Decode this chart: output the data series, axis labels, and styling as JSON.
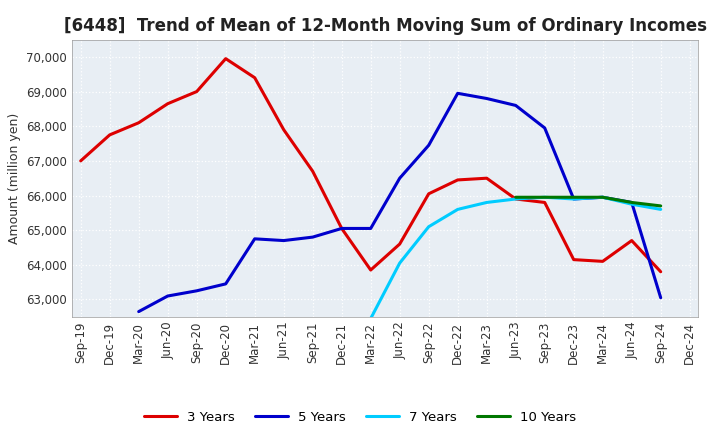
{
  "title": "[6448]  Trend of Mean of 12-Month Moving Sum of Ordinary Incomes",
  "ylabel": "Amount (million yen)",
  "ylim": [
    62500,
    70500
  ],
  "yticks": [
    63000,
    64000,
    65000,
    66000,
    67000,
    68000,
    69000,
    70000
  ],
  "x_labels": [
    "Sep-19",
    "Dec-19",
    "Mar-20",
    "Jun-20",
    "Sep-20",
    "Dec-20",
    "Mar-21",
    "Jun-21",
    "Sep-21",
    "Dec-21",
    "Mar-22",
    "Jun-22",
    "Sep-22",
    "Dec-22",
    "Mar-23",
    "Jun-23",
    "Sep-23",
    "Dec-23",
    "Mar-24",
    "Jun-24",
    "Sep-24",
    "Dec-24"
  ],
  "series": {
    "3 Years": {
      "color": "#dd0000",
      "data_x": [
        "Sep-19",
        "Dec-19",
        "Mar-20",
        "Jun-20",
        "Sep-20",
        "Dec-20",
        "Mar-21",
        "Jun-21",
        "Sep-21",
        "Dec-21",
        "Mar-22",
        "Jun-22",
        "Sep-22",
        "Dec-22",
        "Mar-23",
        "Jun-23",
        "Sep-23",
        "Dec-23",
        "Mar-24",
        "Jun-24",
        "Sep-24"
      ],
      "data_y": [
        67000,
        67750,
        68100,
        68650,
        69000,
        69950,
        69400,
        67900,
        66700,
        65050,
        63850,
        64600,
        66050,
        66450,
        66500,
        65900,
        65800,
        64150,
        64100,
        64700,
        63800
      ]
    },
    "5 Years": {
      "color": "#0000cc",
      "data_x": [
        "Mar-20",
        "Jun-20",
        "Sep-20",
        "Dec-20",
        "Mar-21",
        "Jun-21",
        "Sep-21",
        "Dec-21",
        "Mar-22",
        "Jun-22",
        "Sep-22",
        "Dec-22",
        "Mar-23",
        "Jun-23",
        "Sep-23",
        "Dec-23",
        "Mar-24",
        "Jun-24",
        "Sep-24"
      ],
      "data_y": [
        62650,
        63100,
        63250,
        63450,
        64750,
        64700,
        64800,
        65050,
        65050,
        66500,
        67450,
        68950,
        68800,
        68600,
        67950,
        65900,
        65950,
        65800,
        63050
      ]
    },
    "7 Years": {
      "color": "#00ccff",
      "data_x": [
        "Mar-22",
        "Jun-22",
        "Sep-22",
        "Dec-22",
        "Mar-23",
        "Jun-23",
        "Sep-23",
        "Dec-23",
        "Mar-24",
        "Jun-24",
        "Sep-24"
      ],
      "data_y": [
        62450,
        64050,
        65100,
        65600,
        65800,
        65900,
        65950,
        65900,
        65950,
        65750,
        65600
      ]
    },
    "10 Years": {
      "color": "#007700",
      "data_x": [
        "Jun-23",
        "Sep-23",
        "Dec-23",
        "Mar-24",
        "Jun-24",
        "Sep-24"
      ],
      "data_y": [
        65950,
        65950,
        65950,
        65950,
        65800,
        65700
      ]
    }
  },
  "legend_labels": [
    "3 Years",
    "5 Years",
    "7 Years",
    "10 Years"
  ],
  "background_color": "#ffffff",
  "plot_bg_color": "#e8eef4",
  "grid_color": "#ffffff",
  "title_fontsize": 12,
  "label_fontsize": 9,
  "tick_fontsize": 8.5
}
